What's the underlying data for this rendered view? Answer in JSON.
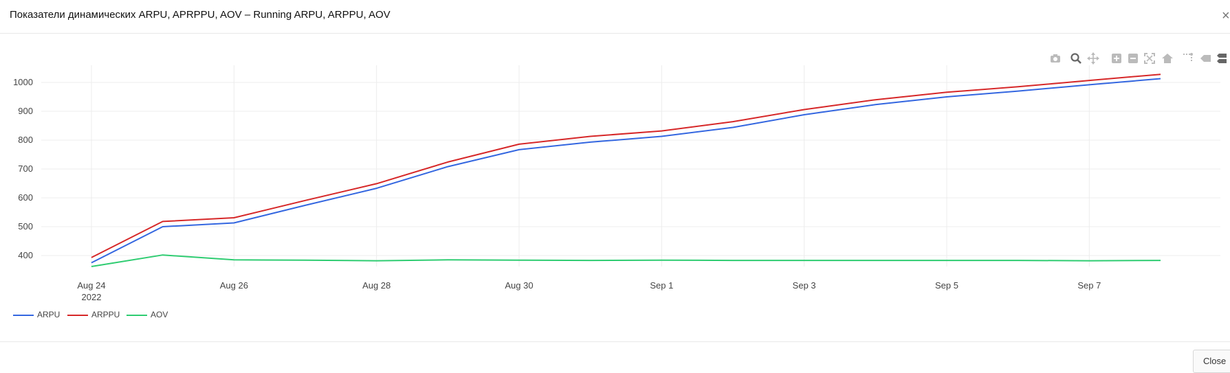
{
  "modal": {
    "title": "Показатели динамических ARPU, APRPPU, AOV – Running ARPU, ARPPU, AOV",
    "close_icon": "close-icon",
    "footer_close_label": "Close"
  },
  "modebar": {
    "icons": [
      "camera-icon",
      "zoom-icon",
      "pan-icon",
      "zoom-in-icon",
      "zoom-out-icon",
      "autoscale-icon",
      "reset-axes-icon",
      "spike-lines-icon",
      "hover-closest-icon",
      "hover-compare-icon"
    ]
  },
  "colors": {
    "ARPU": "#3366e0",
    "ARPPU": "#d62728",
    "AOV": "#2ecc71",
    "grid": "#ececec",
    "tick_text": "#444444"
  },
  "chart_data": {
    "type": "line",
    "x": [
      "2022-08-24",
      "2022-08-25",
      "2022-08-26",
      "2022-08-27",
      "2022-08-28",
      "2022-08-29",
      "2022-08-30",
      "2022-08-31",
      "2022-09-01",
      "2022-09-02",
      "2022-09-03",
      "2022-09-04",
      "2022-09-05",
      "2022-09-06",
      "2022-09-07",
      "2022-09-08"
    ],
    "xtick_labels": [
      "Aug 24",
      "Aug 26",
      "Aug 28",
      "Aug 30",
      "Sep 1",
      "Sep 3",
      "Sep 5",
      "Sep 7"
    ],
    "xtick_dates": [
      "2022-08-24",
      "2022-08-26",
      "2022-08-28",
      "2022-08-30",
      "2022-09-01",
      "2022-09-03",
      "2022-09-05",
      "2022-09-07"
    ],
    "xtick_year_label": "2022",
    "yticks": [
      400,
      500,
      600,
      700,
      800,
      900,
      1000
    ],
    "ylim": [
      345,
      1055
    ],
    "xlim": [
      "2022-08-23",
      "2022-09-08T20:00"
    ],
    "grid": true,
    "legend_position": "bottom-left",
    "series": [
      {
        "name": "ARPU",
        "values": [
          375,
          500,
          513,
          574,
          633,
          708,
          767,
          793,
          813,
          844,
          888,
          923,
          950,
          970,
          992,
          1013
        ]
      },
      {
        "name": "ARPPU",
        "values": [
          393,
          518,
          531,
          591,
          649,
          724,
          786,
          813,
          832,
          864,
          906,
          940,
          966,
          985,
          1007,
          1028
        ]
      },
      {
        "name": "AOV",
        "values": [
          362,
          402,
          385,
          384,
          382,
          385,
          384,
          383,
          384,
          383,
          383,
          383,
          383,
          383,
          382,
          383
        ]
      }
    ]
  }
}
